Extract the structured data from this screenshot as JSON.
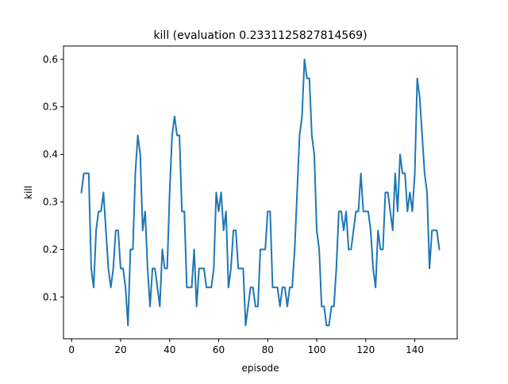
{
  "chart_data": {
    "type": "line",
    "title": "kill (evaluation 0.2331125827814569)",
    "xlabel": "episode",
    "ylabel": "kill",
    "xlim": [
      -3.3,
      157.3
    ],
    "ylim": [
      0.012,
      0.628
    ],
    "xticks": [
      0,
      20,
      40,
      60,
      80,
      100,
      120,
      140
    ],
    "yticks": [
      0.1,
      0.2,
      0.3,
      0.4,
      0.5,
      0.6
    ],
    "grid": false,
    "legend": false,
    "colors": {
      "line": "#1f77b4",
      "axes": "#000000",
      "background": "#ffffff"
    },
    "series": [
      {
        "x": [
          4,
          5,
          6,
          7,
          8,
          9,
          10,
          11,
          12,
          13,
          14,
          15,
          16,
          17,
          18,
          19,
          20,
          21,
          22,
          23,
          24,
          25,
          26,
          27,
          28,
          29,
          30,
          31,
          32,
          33,
          34,
          35,
          36,
          37,
          38,
          39,
          40,
          41,
          42,
          43,
          44,
          45,
          46,
          47,
          48,
          49,
          50,
          51,
          52,
          53,
          54,
          55,
          56,
          57,
          58,
          59,
          60,
          61,
          62,
          63,
          64,
          65,
          66,
          67,
          68,
          69,
          70,
          71,
          72,
          73,
          74,
          75,
          76,
          77,
          78,
          79,
          80,
          81,
          82,
          83,
          84,
          85,
          86,
          87,
          88,
          89,
          90,
          91,
          92,
          93,
          94,
          95,
          96,
          97,
          98,
          99,
          100,
          101,
          102,
          103,
          104,
          105,
          106,
          107,
          108,
          109,
          110,
          111,
          112,
          113,
          114,
          115,
          116,
          117,
          118,
          119,
          120,
          121,
          122,
          123,
          124,
          125,
          126,
          127,
          128,
          129,
          130,
          131,
          132,
          133,
          134,
          135,
          136,
          137,
          138,
          139,
          140,
          141,
          142,
          143,
          144,
          145,
          146,
          147,
          148,
          149,
          150
        ],
        "y": [
          0.32,
          0.36,
          0.36,
          0.36,
          0.16,
          0.12,
          0.24,
          0.28,
          0.28,
          0.32,
          0.24,
          0.16,
          0.12,
          0.16,
          0.24,
          0.24,
          0.16,
          0.16,
          0.12,
          0.04,
          0.2,
          0.2,
          0.36,
          0.44,
          0.4,
          0.24,
          0.28,
          0.16,
          0.08,
          0.16,
          0.16,
          0.12,
          0.08,
          0.2,
          0.16,
          0.16,
          0.32,
          0.44,
          0.48,
          0.44,
          0.44,
          0.28,
          0.28,
          0.12,
          0.12,
          0.12,
          0.2,
          0.08,
          0.16,
          0.16,
          0.16,
          0.12,
          0.12,
          0.12,
          0.16,
          0.32,
          0.28,
          0.32,
          0.24,
          0.28,
          0.12,
          0.16,
          0.24,
          0.24,
          0.16,
          0.16,
          0.16,
          0.04,
          0.08,
          0.12,
          0.12,
          0.08,
          0.08,
          0.2,
          0.2,
          0.2,
          0.28,
          0.28,
          0.12,
          0.12,
          0.12,
          0.08,
          0.12,
          0.12,
          0.08,
          0.12,
          0.12,
          0.2,
          0.32,
          0.44,
          0.48,
          0.6,
          0.56,
          0.56,
          0.44,
          0.4,
          0.24,
          0.2,
          0.08,
          0.08,
          0.04,
          0.04,
          0.08,
          0.08,
          0.16,
          0.28,
          0.28,
          0.24,
          0.28,
          0.2,
          0.2,
          0.24,
          0.28,
          0.28,
          0.36,
          0.28,
          0.28,
          0.28,
          0.24,
          0.16,
          0.12,
          0.24,
          0.2,
          0.2,
          0.32,
          0.32,
          0.28,
          0.24,
          0.36,
          0.28,
          0.4,
          0.36,
          0.36,
          0.28,
          0.32,
          0.28,
          0.36,
          0.56,
          0.52,
          0.44,
          0.36,
          0.32,
          0.16,
          0.24,
          0.24,
          0.24,
          0.2
        ]
      }
    ]
  }
}
